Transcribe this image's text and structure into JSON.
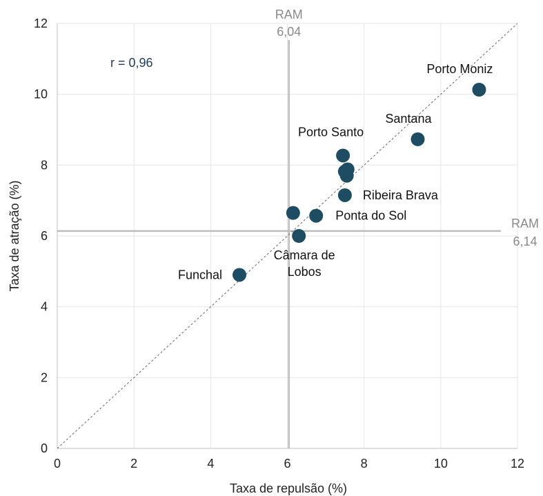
{
  "chart_data": {
    "type": "scatter",
    "xlabel": "Taxa de repulsão (%)",
    "ylabel": "Taxa de atração (%)",
    "xlim": [
      0,
      12
    ],
    "ylim": [
      0,
      12
    ],
    "xticks": [
      "0",
      "2",
      "4",
      "6",
      "8",
      "10",
      "12"
    ],
    "yticks": [
      "0",
      "2",
      "4",
      "6",
      "8",
      "10",
      "12"
    ],
    "grid": true,
    "point_color": "#1e4d63",
    "points": [
      {
        "x": 4.75,
        "y": 4.9,
        "label": "Funchal"
      },
      {
        "x": 6.3,
        "y": 6.0,
        "label": "Câmara de Lobos"
      },
      {
        "x": 6.15,
        "y": 6.65,
        "label": ""
      },
      {
        "x": 6.75,
        "y": 6.57,
        "label": "Ponta do Sol"
      },
      {
        "x": 7.5,
        "y": 7.15,
        "label": "Ribeira Brava"
      },
      {
        "x": 7.55,
        "y": 7.7,
        "label": ""
      },
      {
        "x": 7.5,
        "y": 7.82,
        "label": ""
      },
      {
        "x": 7.57,
        "y": 7.88,
        "label": ""
      },
      {
        "x": 7.45,
        "y": 8.27,
        "label": "Porto Santo"
      },
      {
        "x": 9.4,
        "y": 8.73,
        "label": "Santana"
      },
      {
        "x": 11.0,
        "y": 10.13,
        "label": "Porto Moniz"
      }
    ],
    "reference_lines": {
      "vertical": {
        "x": 6.04,
        "label_line1": "RAM",
        "label_line2": "6,04"
      },
      "horizontal": {
        "y": 6.14,
        "label_line1": "RAM",
        "label_line2": "6,14"
      }
    },
    "diagonal": {
      "from": [
        0,
        0
      ],
      "to": [
        12,
        12
      ],
      "style": "dashed"
    },
    "annotation": "r = 0,96"
  }
}
